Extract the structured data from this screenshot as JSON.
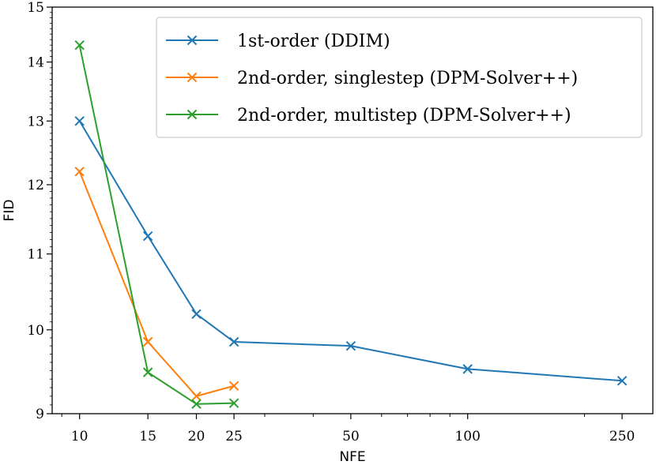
{
  "chart_data": {
    "type": "line",
    "title": "",
    "xlabel": "NFE",
    "ylabel": "FID",
    "x_scale": "log",
    "y_scale": "log",
    "xlim": [
      8.5,
      300
    ],
    "ylim": [
      9,
      15
    ],
    "x_ticks": [
      10,
      15,
      20,
      25,
      50,
      100,
      250
    ],
    "x_tick_labels": [
      "10",
      "15",
      "20",
      "25",
      "50",
      "100",
      "250"
    ],
    "y_ticks": [
      9,
      10,
      11,
      12,
      13,
      14,
      15
    ],
    "y_tick_labels": [
      "9",
      "10",
      "11",
      "12",
      "13",
      "14",
      "15"
    ],
    "grid": false,
    "legend_position": "top-right",
    "series": [
      {
        "name": "1st-order (DDIM)",
        "color": "#1f77b4",
        "marker": "x",
        "x": [
          10,
          15,
          20,
          25,
          50,
          100,
          250
        ],
        "y": [
          13.0,
          11.25,
          10.2,
          9.85,
          9.8,
          9.52,
          9.38
        ]
      },
      {
        "name": "2nd-order, singlestep (DPM-Solver++)",
        "color": "#ff7f0e",
        "marker": "x",
        "x": [
          10,
          15,
          20,
          25
        ],
        "y": [
          12.2,
          9.85,
          9.2,
          9.32
        ]
      },
      {
        "name": "2nd-order, multistep (DPM-Solver++)",
        "color": "#2ca02c",
        "marker": "x",
        "x": [
          10,
          15,
          20,
          25
        ],
        "y": [
          14.3,
          9.48,
          9.11,
          9.12
        ]
      }
    ]
  }
}
